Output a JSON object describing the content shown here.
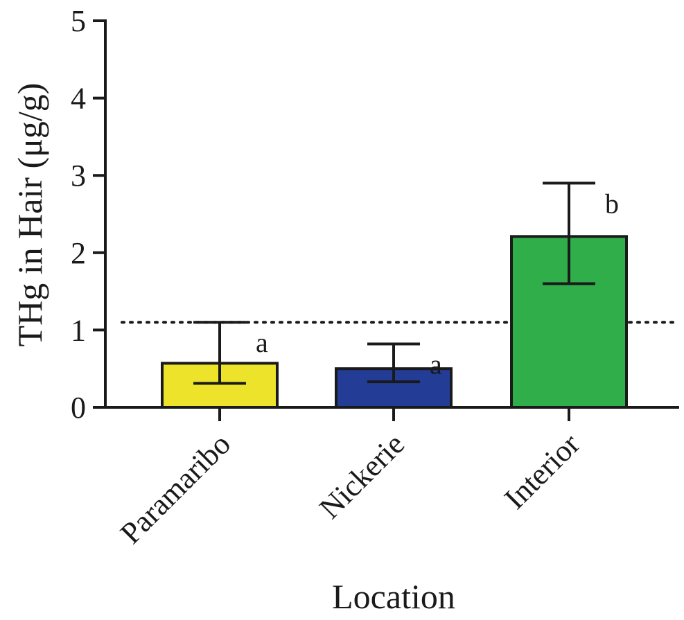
{
  "chart_data": {
    "type": "bar",
    "categories": [
      "Paramaribo",
      "Nickerie",
      "Interior"
    ],
    "values": [
      0.57,
      0.5,
      2.21
    ],
    "error_low": [
      0.31,
      0.33,
      1.6
    ],
    "error_high": [
      1.1,
      0.82,
      2.9
    ],
    "significance_letters": [
      "a",
      "a",
      "b"
    ],
    "colors": [
      "#ece32a",
      "#233d97",
      "#2fae4a"
    ],
    "reference_line": 1.1,
    "title": "",
    "xlabel": "Location",
    "ylabel": "THg in Hair (μg/g)",
    "ylim": [
      0,
      5
    ],
    "yticks": [
      "0",
      "1",
      "2",
      "3",
      "4",
      "5"
    ],
    "grid": false,
    "legend": "none"
  }
}
